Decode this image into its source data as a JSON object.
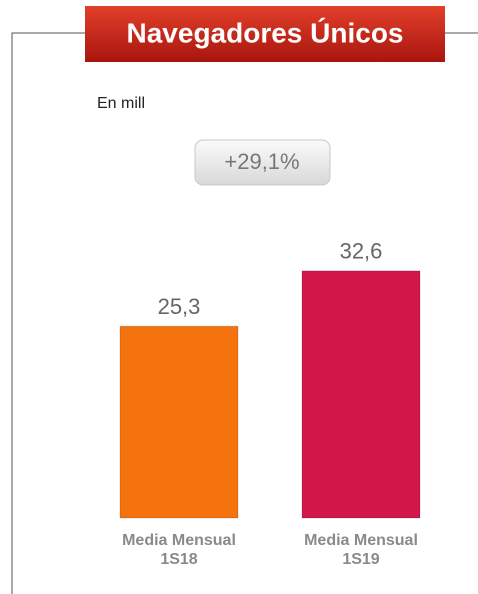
{
  "chart_data": {
    "type": "bar",
    "title": "Navegadores Únicos",
    "subtitle": "En mill",
    "annotation": "+29,1%",
    "categories": [
      "Media Mensual 1S18",
      "Media Mensual 1S19"
    ],
    "values": [
      25.3,
      32.6
    ],
    "value_labels": [
      "25,3",
      "32,6"
    ],
    "colors": [
      "#f4730f",
      "#d2164a"
    ]
  }
}
